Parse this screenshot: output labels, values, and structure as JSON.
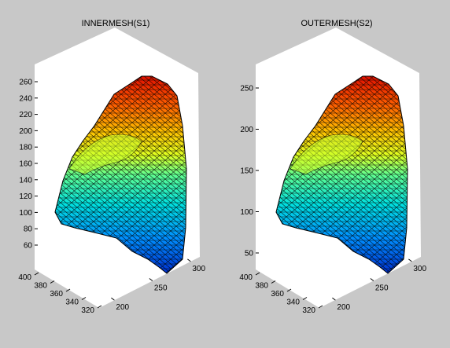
{
  "figure": {
    "background": "#c8c8c8",
    "axes_background": "#ffffff"
  },
  "chart_data": [
    {
      "type": "surface",
      "title": "INNERMESH(S1)",
      "colormap": "jet",
      "edge_color": "#000000",
      "z_ticks": [
        60,
        80,
        100,
        120,
        140,
        160,
        180,
        200,
        220,
        240,
        260
      ],
      "x_ticks": [
        200,
        250,
        300
      ],
      "y_ticks": [
        320,
        340,
        360,
        380,
        400
      ],
      "z_range": [
        45,
        275
      ]
    },
    {
      "type": "surface",
      "title": "OUTERMESH(S2)",
      "colormap": "jet",
      "edge_color": "#000000",
      "z_ticks": [
        50,
        100,
        150,
        200,
        250
      ],
      "x_ticks": [
        200,
        250,
        300
      ],
      "y_ticks": [
        320,
        340,
        360,
        380,
        400
      ],
      "z_range": [
        40,
        280
      ]
    }
  ]
}
